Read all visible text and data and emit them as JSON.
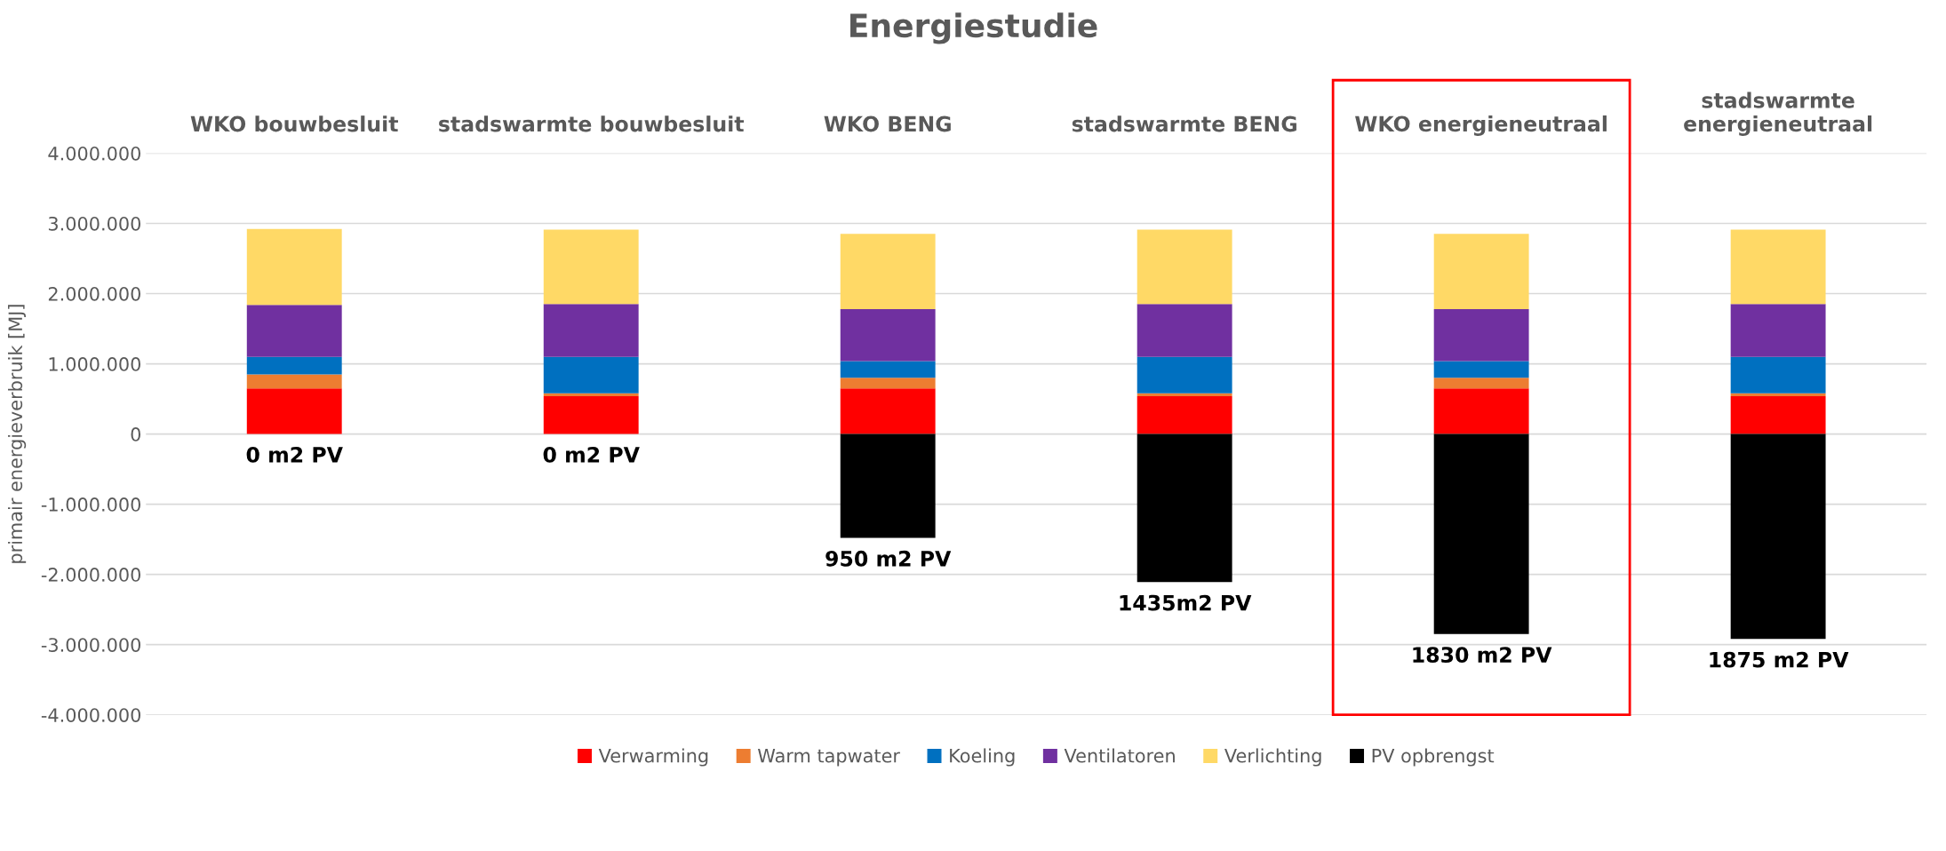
{
  "chart_data": {
    "type": "bar",
    "stacked": true,
    "title": "Energiestudie",
    "ylabel": "primair energieverbruik [MJ]",
    "categories": [
      "WKO bouwbesluit",
      "stadswarmte bouwbesluit",
      "WKO BENG",
      "stadswarmte BENG",
      "WKO energieneutraal",
      "stadswarmte\nenergieneutraal"
    ],
    "series": [
      {
        "name": "Verwarming",
        "color": "#ff0000",
        "values": [
          650000,
          540000,
          650000,
          540000,
          650000,
          540000
        ]
      },
      {
        "name": "Warm tapwater",
        "color": "#ed7d31",
        "values": [
          200000,
          40000,
          150000,
          40000,
          150000,
          40000
        ]
      },
      {
        "name": "Koeling",
        "color": "#0070c0",
        "values": [
          250000,
          520000,
          240000,
          520000,
          240000,
          520000
        ]
      },
      {
        "name": "Ventilatoren",
        "color": "#7030a0",
        "values": [
          740000,
          750000,
          740000,
          750000,
          740000,
          750000
        ]
      },
      {
        "name": "Verlichting",
        "color": "#ffd966",
        "values": [
          1080000,
          1060000,
          1070000,
          1060000,
          1070000,
          1060000
        ]
      },
      {
        "name": "PV opbrengst",
        "color": "#000000",
        "values": [
          null,
          null,
          -1480000,
          -2110000,
          -2850000,
          -2920000
        ]
      }
    ],
    "ylim": [
      -4000000,
      4000000
    ],
    "yticks": [
      {
        "value": -4000000,
        "label": "-4.000.000"
      },
      {
        "value": -3000000,
        "label": "-3.000.000"
      },
      {
        "value": -2000000,
        "label": "-2.000.000"
      },
      {
        "value": -1000000,
        "label": "-1.000.000"
      },
      {
        "value": 0,
        "label": "0"
      },
      {
        "value": 1000000,
        "label": "1.000.000"
      },
      {
        "value": 2000000,
        "label": "2.000.000"
      },
      {
        "value": 3000000,
        "label": "3.000.000"
      },
      {
        "value": 4000000,
        "label": "4.000.000"
      }
    ],
    "grid": "y",
    "legend": "bottom",
    "annotations": [
      {
        "text": "0 m2 PV",
        "x": "WKO bouwbesluit",
        "y": 0
      },
      {
        "text": "0 m2 PV",
        "x": "stadswarmte bouwbesluit",
        "y": 0
      },
      {
        "text": "950 m2 PV",
        "x": "WKO BENG",
        "y": -1480000
      },
      {
        "text": "1435m2 PV",
        "x": "stadswarmte BENG",
        "y": -2110000
      },
      {
        "text": "1830 m2 PV",
        "x": "WKO energieneutraal",
        "y": -2850000
      },
      {
        "text": "1875 m2 PV",
        "x": "stadswarmte\nenergieneutraal",
        "y": -2920000
      }
    ]
  }
}
